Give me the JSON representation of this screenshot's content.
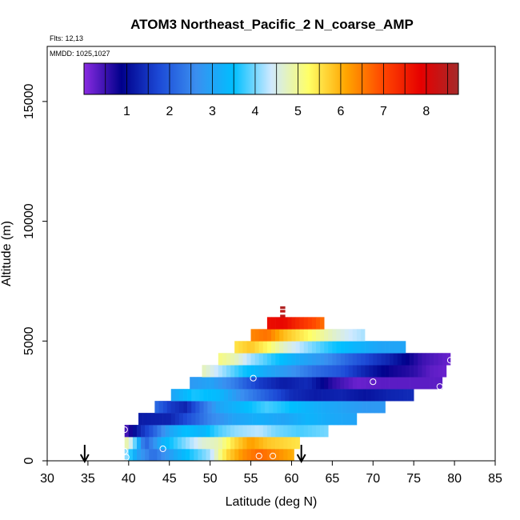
{
  "chart_data": {
    "type": "heatmap",
    "title": "ATOM3 Northeast_Pacific_2 N_coarse_AMP",
    "subtitle_flights": "Flts: 12,13",
    "subtitle_dates": "MMDD: 1025,1027",
    "xlabel": "Latitude (deg N)",
    "ylabel": "Altitude (m)",
    "xlim": [
      30,
      85
    ],
    "ylim": [
      0,
      17300
    ],
    "x_ticks": [
      "30",
      "35",
      "40",
      "45",
      "50",
      "55",
      "60",
      "65",
      "70",
      "75",
      "80",
      "85"
    ],
    "y_ticks": [
      "0",
      "5000",
      "10000",
      "15000"
    ],
    "colorbar": {
      "min": 0,
      "max": 8.75,
      "ticks": [
        "1",
        "2",
        "3",
        "4",
        "5",
        "6",
        "7",
        "8"
      ],
      "stops": [
        "#8a2be2",
        "#00008b",
        "#1c49d6",
        "#3a8ff0",
        "#00bfff",
        "#cfe9ff",
        "#ffff66",
        "#ffa500",
        "#ff4500",
        "#e60000",
        "#a52a2a"
      ]
    },
    "bands": [
      {
        "alt_lo": 0,
        "alt_hi": 500,
        "lat_lo": 39.5,
        "lat_hi": 60.3,
        "points": [
          [
            39.5,
            4.3
          ],
          [
            41,
            3.0
          ],
          [
            43,
            2.2
          ],
          [
            46,
            3.2
          ],
          [
            50,
            4.2
          ],
          [
            52,
            5.6
          ],
          [
            54,
            6.3
          ],
          [
            56,
            6.7
          ],
          [
            58,
            6.4
          ],
          [
            60.3,
            6.0
          ]
        ]
      },
      {
        "alt_lo": 500,
        "alt_hi": 1000,
        "lat_lo": 39.5,
        "lat_hi": 61.0,
        "points": [
          [
            39.5,
            5.0
          ],
          [
            40.5,
            4.3
          ],
          [
            42,
            2.0
          ],
          [
            44,
            3.2
          ],
          [
            46,
            3.8
          ],
          [
            49,
            4.6
          ],
          [
            51,
            4.8
          ],
          [
            53,
            5.6
          ],
          [
            55,
            6.2
          ],
          [
            57,
            5.8
          ],
          [
            61,
            5.5
          ]
        ]
      },
      {
        "alt_lo": 1000,
        "alt_hi": 1500,
        "lat_lo": 39.5,
        "lat_hi": 64.5,
        "points": [
          [
            39.5,
            0.3
          ],
          [
            41,
            1.2
          ],
          [
            43,
            2.0
          ],
          [
            45,
            3.0
          ],
          [
            47,
            3.5
          ],
          [
            49,
            3.3
          ],
          [
            51,
            3.8
          ],
          [
            53,
            4.1
          ],
          [
            56,
            4.3
          ],
          [
            58,
            4.0
          ],
          [
            61,
            3.8
          ],
          [
            64.5,
            4.0
          ]
        ]
      },
      {
        "alt_lo": 1500,
        "alt_hi": 2000,
        "lat_lo": 41.2,
        "lat_hi": 68.0,
        "points": [
          [
            41.2,
            1.2
          ],
          [
            45,
            1.3
          ],
          [
            48,
            2.0
          ],
          [
            50,
            2.5
          ],
          [
            53,
            3.0
          ],
          [
            56,
            3.2
          ],
          [
            59,
            3.0
          ],
          [
            62,
            3.3
          ],
          [
            65,
            3.1
          ],
          [
            68,
            3.0
          ]
        ]
      },
      {
        "alt_lo": 2000,
        "alt_hi": 2500,
        "lat_lo": 43.2,
        "lat_hi": 71.5,
        "points": [
          [
            43.2,
            2.2
          ],
          [
            45,
            1.6
          ],
          [
            47,
            1.3
          ],
          [
            49,
            2.2
          ],
          [
            51,
            3.0
          ],
          [
            54,
            3.4
          ],
          [
            57,
            3.8
          ],
          [
            60,
            3.5
          ],
          [
            63,
            3.2
          ],
          [
            66,
            3.0
          ],
          [
            69,
            2.8
          ],
          [
            71.5,
            2.8
          ]
        ]
      },
      {
        "alt_lo": 2500,
        "alt_hi": 3000,
        "lat_lo": 45.2,
        "lat_hi": 75.0,
        "points": [
          [
            45.2,
            3.0
          ],
          [
            48,
            3.6
          ],
          [
            51,
            3.4
          ],
          [
            54,
            2.6
          ],
          [
            57,
            2.0
          ],
          [
            60,
            1.4
          ],
          [
            63,
            1.2
          ],
          [
            66,
            1.3
          ],
          [
            69,
            1.1
          ],
          [
            72,
            1.3
          ],
          [
            75,
            1.4
          ]
        ]
      },
      {
        "alt_lo": 3000,
        "alt_hi": 3500,
        "lat_lo": 47.5,
        "lat_hi": 78.5,
        "points": [
          [
            47.5,
            2.8
          ],
          [
            50,
            3.0
          ],
          [
            53,
            2.4
          ],
          [
            56,
            1.6
          ],
          [
            59,
            1.2
          ],
          [
            62,
            1.4
          ],
          [
            65,
            0.6
          ],
          [
            68,
            0.2
          ],
          [
            71,
            0.3
          ],
          [
            74,
            0.3
          ],
          [
            78.5,
            0.3
          ]
        ]
      },
      {
        "alt_lo": 3500,
        "alt_hi": 4000,
        "lat_lo": 49.0,
        "lat_hi": 79.0,
        "points": [
          [
            49,
            4.8
          ],
          [
            51,
            4.3
          ],
          [
            54,
            3.6
          ],
          [
            57,
            3.1
          ],
          [
            60,
            2.7
          ],
          [
            63,
            2.2
          ],
          [
            66,
            1.9
          ],
          [
            69,
            1.3
          ],
          [
            72,
            0.8
          ],
          [
            75,
            0.6
          ],
          [
            77,
            0.3
          ],
          [
            79,
            0.2
          ]
        ]
      },
      {
        "alt_lo": 4000,
        "alt_hi": 4500,
        "lat_lo": 51.0,
        "lat_hi": 79.5,
        "points": [
          [
            51,
            5.1
          ],
          [
            53,
            4.8
          ],
          [
            55,
            4.2
          ],
          [
            58,
            3.6
          ],
          [
            61,
            3.1
          ],
          [
            64,
            2.7
          ],
          [
            67,
            2.1
          ],
          [
            70,
            1.6
          ],
          [
            72,
            1.3
          ],
          [
            74,
            0.9
          ],
          [
            76,
            0.5
          ],
          [
            79.5,
            0.2
          ]
        ]
      },
      {
        "alt_lo": 4500,
        "alt_hi": 5000,
        "lat_lo": 53.0,
        "lat_hi": 74.0,
        "points": [
          [
            53,
            5.5
          ],
          [
            55,
            5.8
          ],
          [
            57,
            5.3
          ],
          [
            59,
            4.7
          ],
          [
            62,
            4.1
          ],
          [
            65,
            3.6
          ],
          [
            68,
            3.3
          ],
          [
            71,
            3.0
          ],
          [
            74,
            3.0
          ]
        ]
      },
      {
        "alt_lo": 5000,
        "alt_hi": 5500,
        "lat_lo": 55.0,
        "lat_hi": 69.0,
        "points": [
          [
            55,
            6.4
          ],
          [
            57,
            6.6
          ],
          [
            59,
            5.9
          ],
          [
            61,
            5.5
          ],
          [
            63,
            5.1
          ],
          [
            65,
            4.7
          ],
          [
            67,
            4.4
          ],
          [
            69,
            4.2
          ]
        ]
      },
      {
        "alt_lo": 5500,
        "alt_hi": 6000,
        "lat_lo": 57.0,
        "lat_hi": 64.0,
        "points": [
          [
            57,
            7.7
          ],
          [
            59,
            7.8
          ],
          [
            61,
            7.3
          ],
          [
            63,
            6.9
          ],
          [
            64,
            6.6
          ]
        ]
      },
      {
        "alt_lo": 6000,
        "alt_hi": 6100,
        "lat_lo": 58.6,
        "lat_hi": 59.2,
        "points": [
          [
            58.6,
            8.4
          ],
          [
            59.2,
            8.4
          ]
        ]
      },
      {
        "alt_lo": 6200,
        "alt_hi": 6300,
        "lat_lo": 58.6,
        "lat_hi": 59.2,
        "points": [
          [
            58.6,
            8.4
          ],
          [
            59.2,
            8.4
          ]
        ]
      },
      {
        "alt_lo": 6350,
        "alt_hi": 6450,
        "lat_lo": 58.6,
        "lat_hi": 59.2,
        "points": [
          [
            58.6,
            8.6
          ],
          [
            59.2,
            8.6
          ]
        ]
      }
    ],
    "markers": [
      {
        "lat": 39.5,
        "alt": 1300
      },
      {
        "lat": 39.5,
        "alt": 400
      },
      {
        "lat": 39.7,
        "alt": 150
      },
      {
        "lat": 44.2,
        "alt": 500
      },
      {
        "lat": 56.0,
        "alt": 200
      },
      {
        "lat": 57.7,
        "alt": 200
      },
      {
        "lat": 55.3,
        "alt": 3450
      },
      {
        "lat": 70.0,
        "alt": 3300
      },
      {
        "lat": 78.2,
        "alt": 3100
      },
      {
        "lat": 79.5,
        "alt": 4200
      }
    ],
    "arrows_lat": [
      34.6,
      61.2
    ]
  }
}
